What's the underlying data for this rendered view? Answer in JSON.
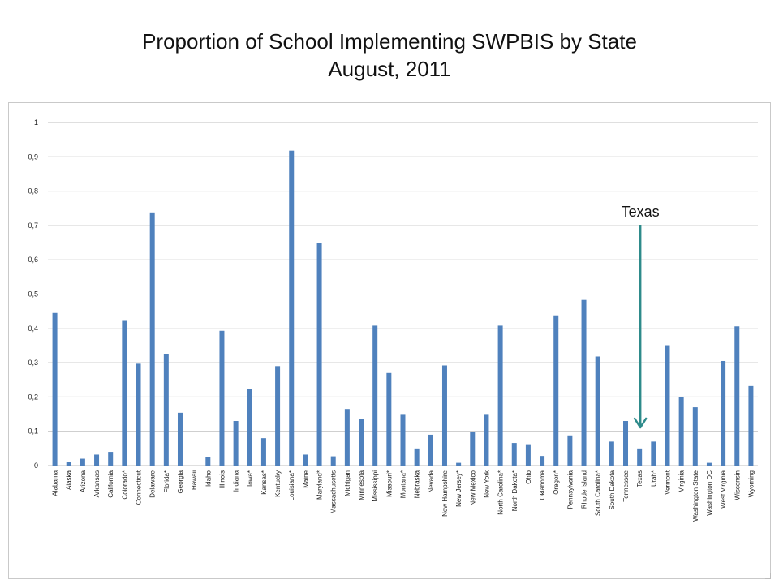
{
  "title": {
    "line1": "Proportion of School Implementing SWPBIS by State",
    "line2": "August, 2011"
  },
  "colors": {
    "bar": "#4f81bd",
    "grid": "#bfbfbf",
    "arrow": "#2e8b8b"
  },
  "chart_data": {
    "type": "bar",
    "title": "Proportion of School Implementing SWPBIS by State August, 2011",
    "xlabel": "",
    "ylabel": "",
    "ylim": [
      0,
      1
    ],
    "yticks": [
      "0",
      "0,1",
      "0,2",
      "0,3",
      "0,4",
      "0,5",
      "0,6",
      "0,7",
      "0,8",
      "0,9",
      "1"
    ],
    "grid": true,
    "categories": [
      "Alabama",
      "Alaska",
      "Arizona",
      "Arkansas",
      "California",
      "Colorado*",
      "Connecticut",
      "Delaware",
      "Florida*",
      "Georgia",
      "Hawaii",
      "Idaho",
      "Illinois",
      "Indiana",
      "Iowa*",
      "Kansas*",
      "Kentucky",
      "Louisiana*",
      "Maine",
      "Maryland*",
      "Massachusetts",
      "Michigan",
      "Minnesota",
      "Mississippi",
      "Missouri*",
      "Montana*",
      "Nebraska",
      "Nevada",
      "New Hampshire",
      "New Jersey*",
      "New Mexico",
      "New York",
      "North Carolina*",
      "North Dakota*",
      "Ohio",
      "Oklahoma",
      "Oregon*",
      "Pennsylvania",
      "Rhode Island",
      "South Carolina*",
      "South Dakota",
      "Tennessee",
      "Texas",
      "Utah*",
      "Vermont",
      "Virginia",
      "Washington State",
      "Washington DC",
      "West Virginia",
      "Wisconsin",
      "Wyoming"
    ],
    "values": [
      0.445,
      0.01,
      0.02,
      0.032,
      0.04,
      0.422,
      0.297,
      0.738,
      0.326,
      0.154,
      0.0,
      0.025,
      0.393,
      0.13,
      0.224,
      0.08,
      0.29,
      0.918,
      0.032,
      0.65,
      0.027,
      0.165,
      0.137,
      0.408,
      0.27,
      0.148,
      0.05,
      0.09,
      0.292,
      0.008,
      0.097,
      0.148,
      0.408,
      0.066,
      0.06,
      0.028,
      0.438,
      0.088,
      0.483,
      0.318,
      0.07,
      0.13,
      0.05,
      0.07,
      0.351,
      0.2,
      0.17,
      0.008,
      0.305,
      0.406,
      0.232
    ],
    "annotation": {
      "text": "Texas",
      "target": "Texas"
    }
  }
}
